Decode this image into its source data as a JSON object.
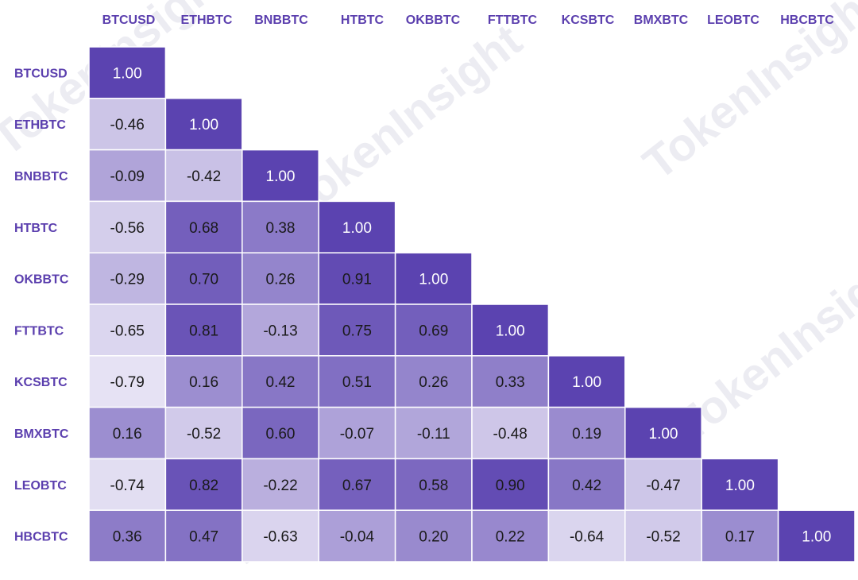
{
  "chart_data": {
    "type": "heatmap",
    "layout": "lower-triangle",
    "columns": [
      "BTCUSD",
      "ETHBTC",
      "BNBBTC",
      "HTBTC",
      "OKBBTC",
      "FTTBTC",
      "KCSBTC",
      "BMXBTC",
      "LEOBTC",
      "HBCBTC"
    ],
    "rows": [
      "BTCUSD",
      "ETHBTC",
      "BNBBTC",
      "HTBTC",
      "OKBBTC",
      "FTTBTC",
      "KCSBTC",
      "BMXBTC",
      "LEOBTC",
      "HBCBTC"
    ],
    "values": [
      [
        "1.00"
      ],
      [
        "-0.46",
        "1.00"
      ],
      [
        "-0.09",
        "-0.42",
        "1.00"
      ],
      [
        "-0.56",
        "0.68",
        "0.38",
        "1.00"
      ],
      [
        "-0.29",
        "0.70",
        "0.26",
        "0.91",
        "1.00"
      ],
      [
        "-0.65",
        "0.81",
        "-0.13",
        "0.75",
        "0.69",
        "1.00"
      ],
      [
        "-0.79",
        "0.16",
        "0.42",
        "0.51",
        "0.26",
        "0.33",
        "1.00"
      ],
      [
        "0.16",
        "-0.52",
        "0.60",
        "-0.07",
        "-0.11",
        "-0.48",
        "0.19",
        "1.00"
      ],
      [
        "-0.74",
        "0.82",
        "-0.22",
        "0.67",
        "0.58",
        "0.90",
        "0.42",
        "-0.47",
        "1.00"
      ],
      [
        "0.36",
        "0.47",
        "-0.63",
        "-0.04",
        "0.20",
        "0.22",
        "-0.64",
        "-0.52",
        "0.17",
        "1.00"
      ]
    ],
    "color_scale": {
      "min": -0.79,
      "max": 1.0,
      "low_color": "#e6e2f4",
      "high_color": "#5b43b0"
    },
    "label_color": "#5b3fae",
    "watermark": "TokenInsight"
  }
}
